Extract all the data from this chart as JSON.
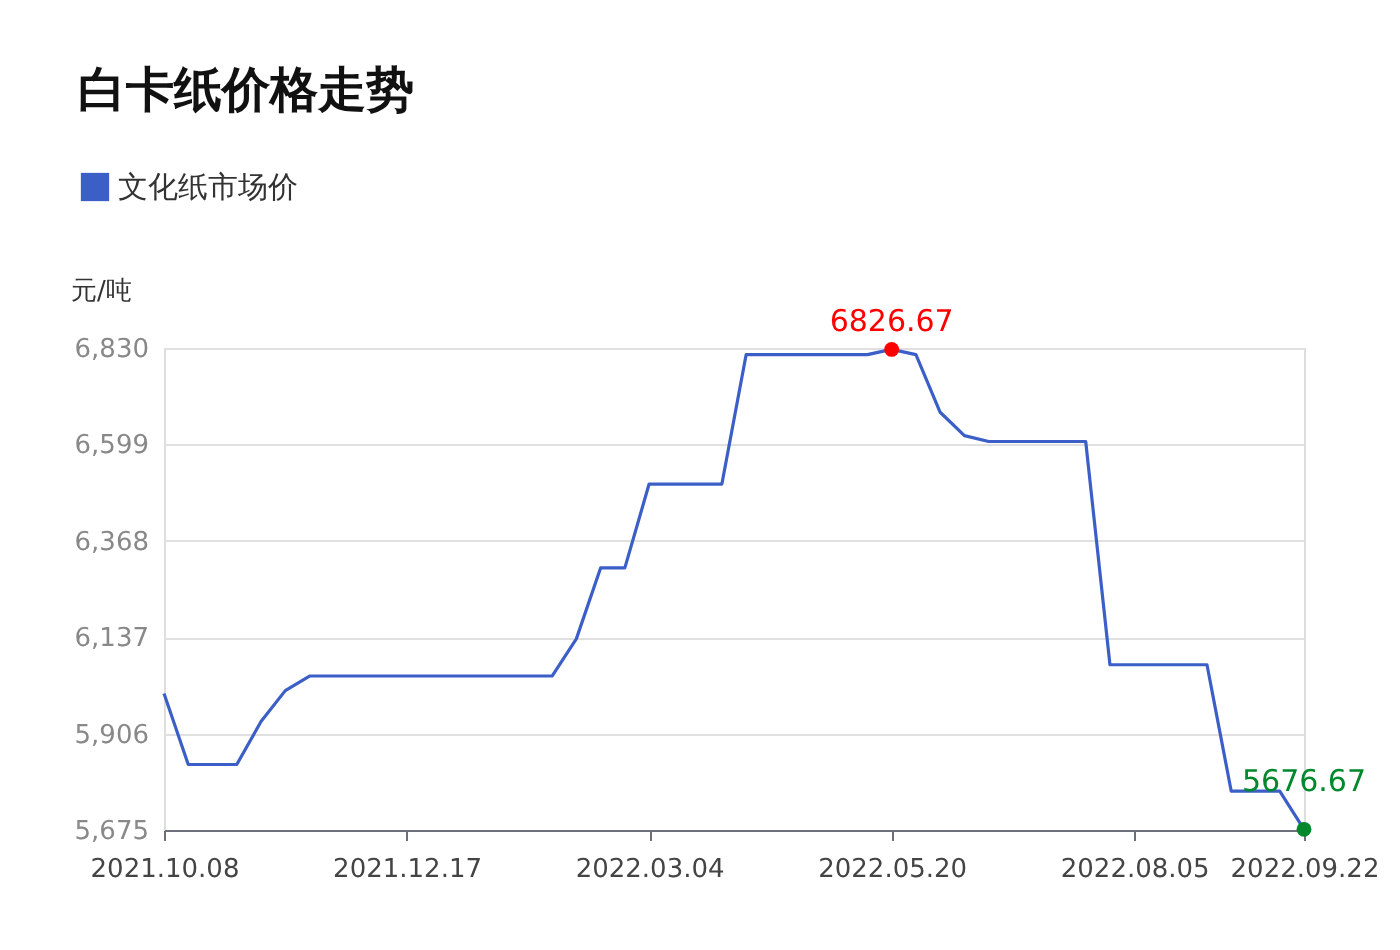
{
  "chart_data": {
    "type": "line",
    "title": "白卡纸价格走势",
    "ylabel": "元/吨",
    "categories": [
      "2021.10.08",
      null,
      null,
      null,
      null,
      null,
      null,
      null,
      null,
      null,
      "2021.12.17",
      null,
      null,
      null,
      null,
      null,
      null,
      null,
      null,
      null,
      "2022.03.04",
      null,
      null,
      null,
      null,
      null,
      null,
      null,
      null,
      null,
      "2022.05.20",
      null,
      null,
      null,
      null,
      null,
      null,
      null,
      null,
      null,
      "2022.08.05",
      null,
      null,
      null,
      null,
      null,
      null,
      "2022.09.22"
    ],
    "series": [
      {
        "name": "文化纸市场价",
        "color": "#3b5fc6",
        "values": [
          6002,
          5832,
          5832,
          5832,
          5935,
          6009,
          6044,
          6044,
          6044,
          6044,
          6044,
          6044,
          6044,
          6044,
          6044,
          6044,
          6044,
          6133,
          6303,
          6303,
          6504,
          6504,
          6504,
          6504,
          6814,
          6814,
          6814,
          6814,
          6814,
          6814,
          6826.67,
          6814,
          6676,
          6620,
          6606,
          6606,
          6606,
          6606,
          6606,
          6071,
          6071,
          6071,
          6071,
          6071,
          5768,
          5768,
          5768,
          5676.67
        ],
        "value_labels": [
          null,
          null,
          null,
          null,
          null,
          null,
          null,
          null,
          null,
          null,
          null,
          null,
          null,
          null,
          null,
          null,
          null,
          null,
          null,
          null,
          null,
          null,
          null,
          null,
          null,
          null,
          null,
          null,
          null,
          null,
          "6826.67",
          null,
          null,
          null,
          null,
          null,
          null,
          null,
          null,
          null,
          null,
          null,
          null,
          null,
          null,
          null,
          null,
          "5676.67"
        ],
        "colors": [
          null,
          null,
          null,
          null,
          null,
          null,
          null,
          null,
          null,
          null,
          null,
          null,
          null,
          null,
          null,
          null,
          null,
          null,
          null,
          null,
          null,
          null,
          null,
          null,
          null,
          null,
          null,
          null,
          null,
          null,
          "#ff0000",
          null,
          null,
          null,
          null,
          null,
          null,
          null,
          null,
          null,
          null,
          null,
          null,
          null,
          null,
          null,
          null,
          "#00892c"
        ]
      }
    ],
    "ylim": [
      5675,
      6830
    ],
    "yticks": [
      {
        "value": 5675,
        "label": "5,675"
      },
      {
        "value": 5906,
        "label": "5,906"
      },
      {
        "value": 6137,
        "label": "6,137"
      },
      {
        "value": 6368,
        "label": "6,368"
      },
      {
        "value": 6599,
        "label": "6,599"
      },
      {
        "value": 6830,
        "label": "6,830"
      }
    ],
    "grid": "y",
    "legend": "top left",
    "marker": "none",
    "line_style": "solid"
  }
}
